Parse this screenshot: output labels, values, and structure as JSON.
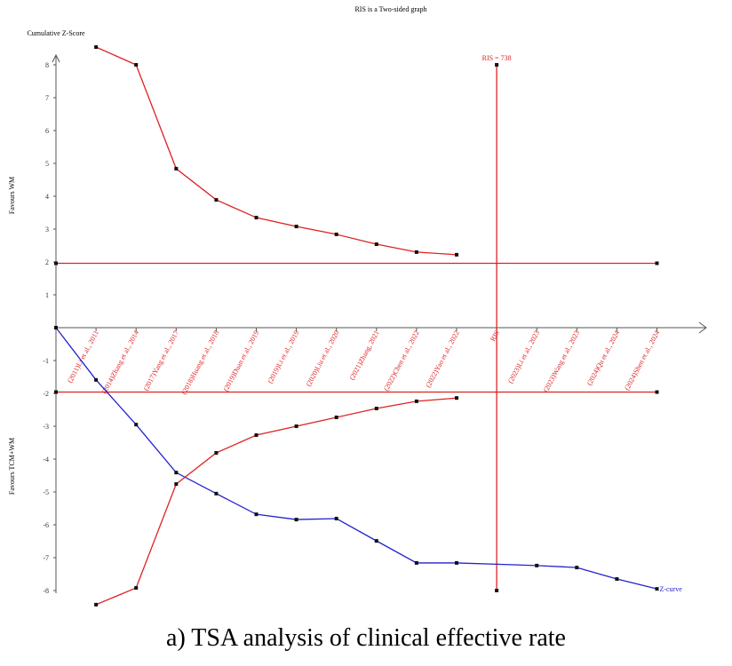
{
  "chart_data": {
    "type": "line",
    "title": "RIS is a Two-sided graph",
    "y_label": "Cumulative Z-Score",
    "favours_upper": "Favours WM",
    "favours_lower": "Favours TCM+WM",
    "ris_label": "RIS = 738",
    "caption": "a) TSA analysis of clinical effective rate",
    "categories": [
      null,
      "(2011)Li et al., 2011",
      "(2014)Zhang et al., 2014",
      "(2017)Yang et al., 2017",
      "(2018)Huang et al., 2018",
      "(2019)Duan et al., 2019",
      "(2019)Li et al., 2019",
      "(2020)Liu et al., 2020",
      "(2021)Zhang, 2021",
      "(2022)Chen et al., 2022",
      "(2022)Yao et al., 2022",
      "RIS",
      "(2023)Li et al., 2023",
      "(2023)Wang et al., 2023",
      "(2024)Qu et al., 2024",
      "(2024)Shen et al., 2024"
    ],
    "ris_index": 11,
    "conventional_boundary": [
      1.96,
      -1.96
    ],
    "series": [
      {
        "name": "Z-curve",
        "color": "#2222cc",
        "values": [
          0,
          -1.59,
          -2.95,
          -4.41,
          -5.05,
          -5.68,
          -5.84,
          -5.81,
          -6.49,
          -7.16,
          -7.16,
          -7.2,
          -7.24,
          -7.3,
          -7.65,
          -7.95
        ]
      },
      {
        "color": "#dd2222",
        "values": [
          null,
          8.54,
          8,
          4.84,
          3.89,
          3.35,
          3.08,
          2.84,
          2.54,
          2.3,
          2.22,
          null,
          null,
          null,
          null,
          null
        ]
      },
      {
        "color": "#dd2222",
        "values": [
          null,
          -8.43,
          -7.92,
          -4.76,
          -3.81,
          -3.27,
          -3,
          -2.73,
          -2.46,
          -2.24,
          -2.14,
          null,
          null,
          null,
          null,
          null
        ]
      }
    ],
    "ylim": [
      -8,
      8
    ],
    "yticks": [
      -8,
      -7,
      -6,
      -5,
      -4,
      -3,
      -2,
      -1,
      1,
      2,
      3,
      4,
      5,
      6,
      7,
      8
    ]
  }
}
